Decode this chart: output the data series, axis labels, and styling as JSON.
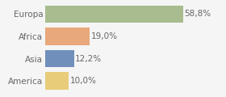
{
  "categories": [
    "Europa",
    "Africa",
    "Asia",
    "America"
  ],
  "values": [
    58.8,
    19.0,
    12.2,
    10.0
  ],
  "labels": [
    "58,8%",
    "19,0%",
    "12,2%",
    "10,0%"
  ],
  "bar_colors": [
    "#a8bc8f",
    "#e8a87c",
    "#7090bb",
    "#e8cc7a"
  ],
  "xlim": [
    0,
    75
  ],
  "background_color": "#f5f5f5",
  "bar_height": 0.78,
  "label_fontsize": 7.5,
  "tick_fontsize": 7.5
}
